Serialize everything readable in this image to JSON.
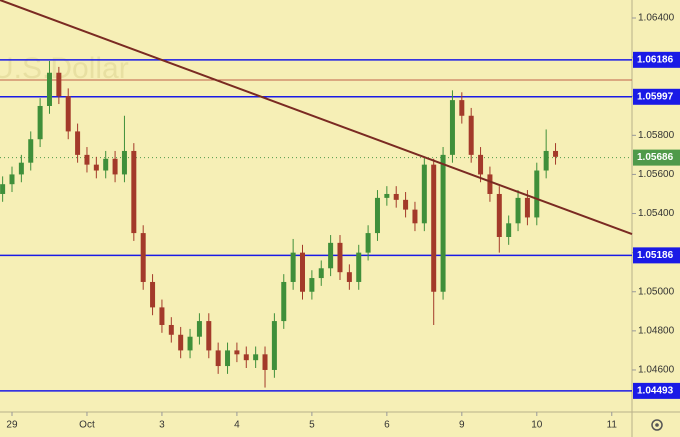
{
  "chart_data": {
    "type": "candlestick",
    "watermark": "U.S.Dollar",
    "xlim": [
      -0.16,
      8.27
    ],
    "ylim": [
      1.04385,
      1.06492
    ],
    "xticks": [
      {
        "value": 0,
        "label": "29"
      },
      {
        "value": 1,
        "label": "Oct"
      },
      {
        "value": 2,
        "label": "3"
      },
      {
        "value": 3,
        "label": "4"
      },
      {
        "value": 4,
        "label": "5"
      },
      {
        "value": 5,
        "label": "6"
      },
      {
        "value": 6,
        "label": "9"
      },
      {
        "value": 7,
        "label": "10"
      },
      {
        "value": 8,
        "label": "11"
      }
    ],
    "yticks": [
      {
        "value": 1.046,
        "label": "1.04600"
      },
      {
        "value": 1.048,
        "label": "1.04800"
      },
      {
        "value": 1.05,
        "label": "1.05000"
      },
      {
        "value": 1.052,
        "label": "1.05200"
      },
      {
        "value": 1.054,
        "label": "1.05400"
      },
      {
        "value": 1.056,
        "label": "1.05600"
      },
      {
        "value": 1.058,
        "label": "1.05800"
      },
      {
        "value": 1.06,
        "label": "1.06000"
      },
      {
        "value": 1.062,
        "label": "1.06200"
      },
      {
        "value": 1.064,
        "label": "1.06400"
      }
    ],
    "up_color": "#3f8f3a",
    "down_color": "#a33a2a",
    "candles": {
      "x": [
        -0.125,
        0,
        0.125,
        0.25,
        0.375,
        0.5,
        0.625,
        0.75,
        0.875,
        1,
        1.125,
        1.25,
        1.375,
        1.5,
        1.625,
        1.75,
        1.875,
        2,
        2.125,
        2.25,
        2.375,
        2.5,
        2.625,
        2.75,
        2.875,
        3,
        3.125,
        3.25,
        3.375,
        3.5,
        3.625,
        3.75,
        3.875,
        4,
        4.125,
        4.25,
        4.375,
        4.5,
        4.625,
        4.75,
        4.875,
        5,
        5.125,
        5.25,
        5.375,
        5.5,
        5.625,
        5.75,
        5.875,
        6,
        6.125,
        6.25,
        6.375,
        6.5,
        6.625,
        6.75,
        6.875,
        7,
        7.125,
        7.25
      ],
      "open": [
        1.055,
        1.0555,
        1.056,
        1.0566,
        1.0578,
        1.0595,
        1.0612,
        1.06,
        1.0582,
        1.057,
        1.0565,
        1.0562,
        1.0568,
        1.056,
        1.0572,
        1.053,
        1.0505,
        1.0492,
        1.0483,
        1.0478,
        1.047,
        1.0477,
        1.0485,
        1.047,
        1.0462,
        1.047,
        1.0468,
        1.0465,
        1.0468,
        1.046,
        1.0485,
        1.0505,
        1.052,
        1.05,
        1.0507,
        1.0512,
        1.0525,
        1.051,
        1.0505,
        1.052,
        1.053,
        1.0548,
        1.055,
        1.0547,
        1.0542,
        1.0535,
        1.0565,
        1.05,
        1.057,
        1.0598,
        1.059,
        1.057,
        1.056,
        1.055,
        1.0528,
        1.0535,
        1.0548,
        1.0538,
        1.0562,
        1.0572
      ],
      "high": [
        1.0559,
        1.0564,
        1.057,
        1.0582,
        1.0599,
        1.0618,
        1.0615,
        1.0604,
        1.0586,
        1.0574,
        1.0569,
        1.0572,
        1.0572,
        1.059,
        1.0576,
        1.0534,
        1.0509,
        1.0496,
        1.0487,
        1.0482,
        1.0481,
        1.0489,
        1.0489,
        1.0474,
        1.0474,
        1.0474,
        1.0472,
        1.0472,
        1.0472,
        1.0489,
        1.0509,
        1.0527,
        1.0524,
        1.0511,
        1.0516,
        1.0529,
        1.0529,
        1.0514,
        1.0524,
        1.0534,
        1.0552,
        1.0554,
        1.0554,
        1.0551,
        1.0546,
        1.0569,
        1.0568,
        1.0574,
        1.0603,
        1.0602,
        1.0594,
        1.0574,
        1.0564,
        1.0554,
        1.0539,
        1.0552,
        1.0552,
        1.0566,
        1.0583,
        1.0576
      ],
      "low": [
        1.0546,
        1.0551,
        1.0556,
        1.0562,
        1.0574,
        1.0591,
        1.0596,
        1.0578,
        1.0566,
        1.0561,
        1.0558,
        1.0558,
        1.0556,
        1.0556,
        1.0526,
        1.0501,
        1.0488,
        1.0479,
        1.0474,
        1.0466,
        1.0466,
        1.0473,
        1.0466,
        1.0458,
        1.0458,
        1.0464,
        1.0461,
        1.0461,
        1.0451,
        1.0456,
        1.0481,
        1.0501,
        1.0496,
        1.0496,
        1.0503,
        1.0508,
        1.0506,
        1.0501,
        1.0501,
        1.0516,
        1.0526,
        1.0544,
        1.0543,
        1.0538,
        1.0531,
        1.0531,
        1.0483,
        1.0496,
        1.0566,
        1.0586,
        1.0566,
        1.0556,
        1.0546,
        1.052,
        1.0524,
        1.0531,
        1.0534,
        1.0534,
        1.0558,
        1.0565
      ],
      "close": [
        1.0555,
        1.056,
        1.0566,
        1.0578,
        1.0595,
        1.0612,
        1.06,
        1.0582,
        1.057,
        1.0565,
        1.0562,
        1.0568,
        1.056,
        1.0572,
        1.053,
        1.0505,
        1.0492,
        1.0483,
        1.0478,
        1.047,
        1.0477,
        1.0485,
        1.047,
        1.0462,
        1.047,
        1.0468,
        1.0465,
        1.0468,
        1.046,
        1.0485,
        1.0505,
        1.052,
        1.05,
        1.0507,
        1.0512,
        1.0525,
        1.051,
        1.0505,
        1.052,
        1.053,
        1.0548,
        1.055,
        1.0547,
        1.0542,
        1.0535,
        1.0565,
        1.05,
        1.057,
        1.0598,
        1.059,
        1.057,
        1.056,
        1.055,
        1.0528,
        1.0535,
        1.0548,
        1.0538,
        1.0562,
        1.0572,
        1.0569
      ]
    },
    "levels": [
      {
        "value": 1.06186,
        "color": "#1a1ae6"
      },
      {
        "value": 1.05997,
        "color": "#1a1ae6"
      },
      {
        "value": 1.05186,
        "color": "#1a1ae6"
      },
      {
        "value": 1.04493,
        "color": "#1a1ae6"
      }
    ],
    "resistance": {
      "value": 1.06083,
      "color": "#c0604a"
    },
    "trendline": {
      "x": [
        -0.16,
        8.27
      ],
      "y": [
        1.06492,
        1.05295
      ],
      "color": "#7a2a22"
    },
    "last_price": {
      "value": 1.05686,
      "color": "#4f9a4a"
    }
  }
}
